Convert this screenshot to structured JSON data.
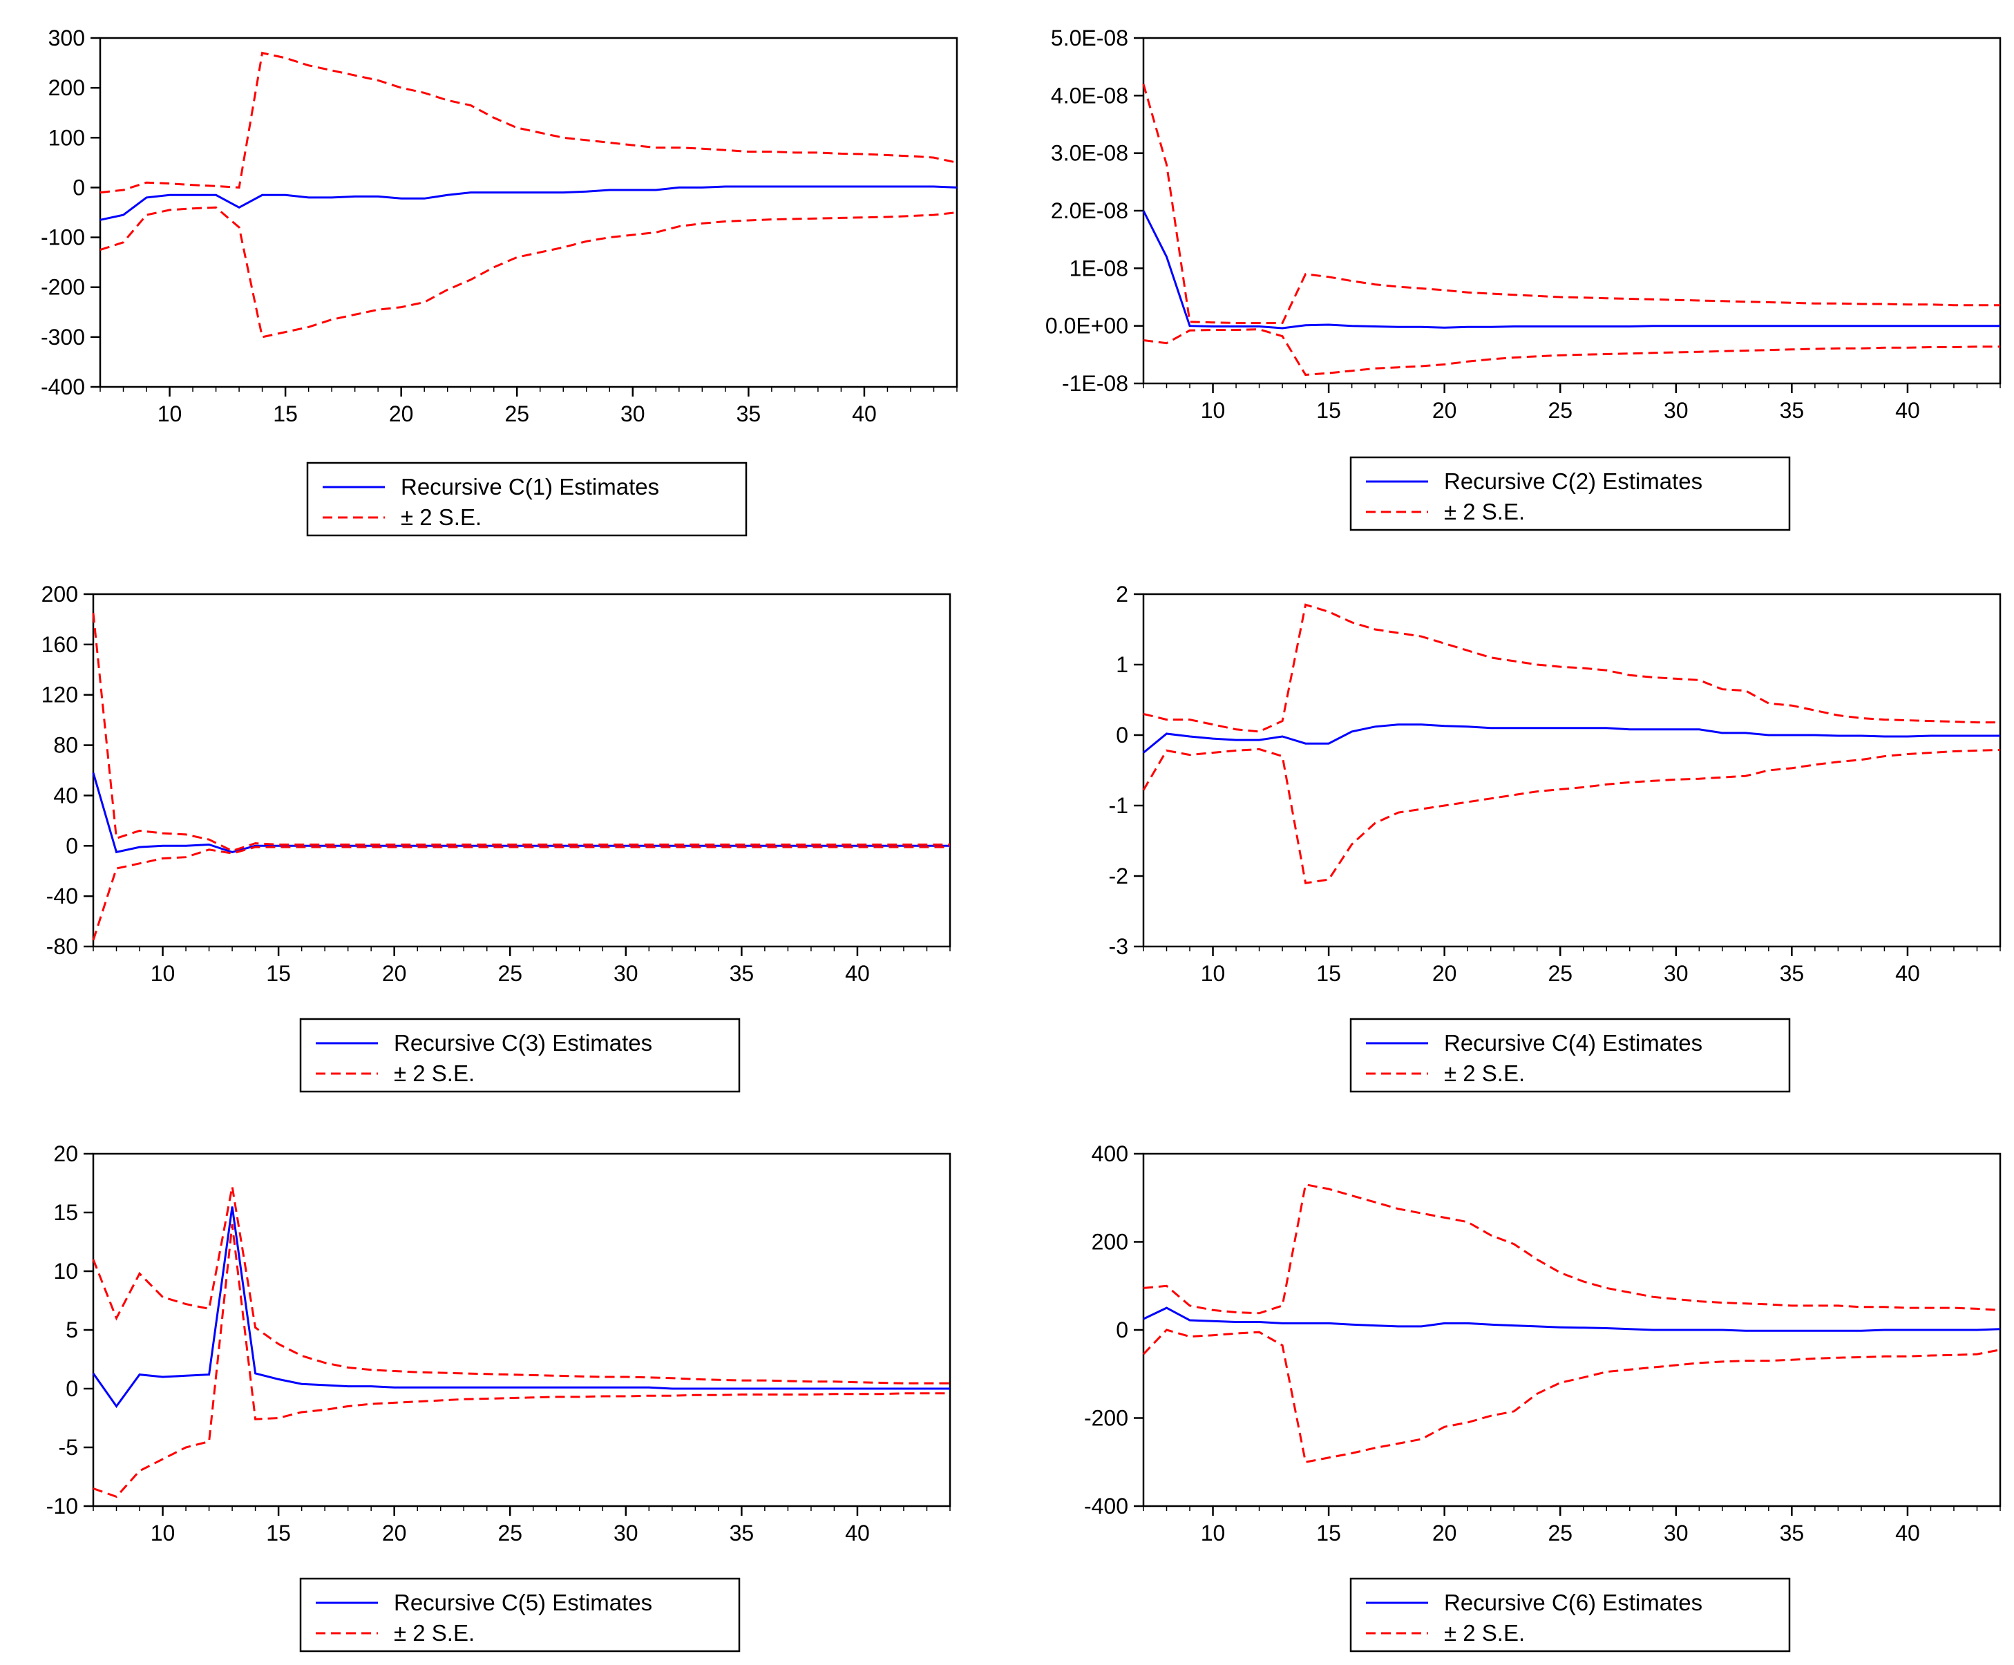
{
  "colors": {
    "estimate": "#0000ff",
    "band": "#ff0000",
    "axis": "#000000"
  },
  "legend_labels": {
    "band": "± 2 S.E."
  },
  "chart_data": [
    {
      "type": "line",
      "title": "Recursive C(1) Estimates",
      "xlim": [
        7,
        44
      ],
      "x_ticks": [
        10,
        15,
        20,
        25,
        30,
        35,
        40
      ],
      "ylim": [
        -400,
        300
      ],
      "y_ticks": [
        -400,
        -300,
        -200,
        -100,
        0,
        100,
        200,
        300
      ],
      "y_tick_labels": [
        "-400",
        "-300",
        "-200",
        "-100",
        "0",
        "100",
        "200",
        "300"
      ],
      "x": [
        7,
        8,
        9,
        10,
        11,
        12,
        13,
        14,
        15,
        16,
        17,
        18,
        19,
        20,
        21,
        22,
        23,
        24,
        25,
        26,
        27,
        28,
        29,
        30,
        31,
        32,
        33,
        34,
        35,
        36,
        37,
        38,
        39,
        40,
        41,
        42,
        43,
        44
      ],
      "series": [
        {
          "name": "Recursive C(1) Estimates",
          "values": [
            -65,
            -55,
            -20,
            -15,
            -15,
            -15,
            -40,
            -15,
            -15,
            -20,
            -20,
            -18,
            -18,
            -22,
            -22,
            -15,
            -10,
            -10,
            -10,
            -10,
            -10,
            -8,
            -5,
            -5,
            -5,
            0,
            0,
            2,
            2,
            2,
            2,
            2,
            2,
            2,
            2,
            2,
            2,
            0
          ]
        },
        {
          "name": "+2 S.E.",
          "values": [
            -10,
            -5,
            10,
            8,
            5,
            3,
            0,
            270,
            260,
            245,
            235,
            225,
            215,
            200,
            190,
            175,
            165,
            140,
            120,
            110,
            100,
            95,
            90,
            85,
            80,
            80,
            78,
            75,
            72,
            72,
            70,
            70,
            68,
            67,
            65,
            63,
            60,
            50
          ]
        },
        {
          "name": "-2 S.E.",
          "values": [
            -125,
            -110,
            -55,
            -45,
            -42,
            -40,
            -80,
            -300,
            -290,
            -280,
            -265,
            -255,
            -245,
            -240,
            -230,
            -205,
            -185,
            -160,
            -140,
            -130,
            -120,
            -108,
            -100,
            -95,
            -90,
            -78,
            -72,
            -68,
            -66,
            -64,
            -63,
            -62,
            -61,
            -60,
            -59,
            -57,
            -55,
            -50
          ]
        }
      ]
    },
    {
      "type": "line",
      "title": "Recursive C(2) Estimates",
      "xlim": [
        7,
        44
      ],
      "x_ticks": [
        10,
        15,
        20,
        25,
        30,
        35,
        40
      ],
      "ylim": [
        -1e-08,
        5e-08
      ],
      "y_ticks": [
        -1e-08,
        0,
        1e-08,
        2e-08,
        3e-08,
        4e-08,
        5e-08
      ],
      "y_tick_labels": [
        "-1E-08",
        "0.0E+00",
        "1E-08",
        "2.0E-08",
        "3.0E-08",
        "4.0E-08",
        "5.0E-08"
      ],
      "x": [
        7,
        8,
        9,
        10,
        11,
        12,
        13,
        14,
        15,
        16,
        17,
        18,
        19,
        20,
        21,
        22,
        23,
        24,
        25,
        26,
        27,
        28,
        29,
        30,
        31,
        32,
        33,
        34,
        35,
        36,
        37,
        38,
        39,
        40,
        41,
        42,
        43,
        44
      ],
      "series": [
        {
          "name": "Recursive C(2) Estimates",
          "values": [
            2e-08,
            1.2e-08,
            0.0,
            -1e-10,
            -1e-10,
            -1e-10,
            -4e-10,
            1e-10,
            2e-10,
            0.0,
            -1e-10,
            -2e-10,
            -2e-10,
            -3e-10,
            -2e-10,
            -2e-10,
            -1e-10,
            -1e-10,
            -1e-10,
            -1e-10,
            -1e-10,
            -1e-10,
            0,
            0,
            0,
            0,
            0,
            0,
            0,
            0,
            0,
            0,
            0,
            0,
            0,
            0,
            0,
            0
          ]
        },
        {
          "name": "+2 S.E.",
          "values": [
            4.2e-08,
            2.8e-08,
            7e-10,
            6e-10,
            5e-10,
            5e-10,
            5e-10,
            9e-09,
            8.5e-09,
            7.8e-09,
            7.2e-09,
            6.8e-09,
            6.5e-09,
            6.2e-09,
            5.8e-09,
            5.6e-09,
            5.4e-09,
            5.2e-09,
            5e-09,
            4.9e-09,
            4.8e-09,
            4.7e-09,
            4.6e-09,
            4.5e-09,
            4.4e-09,
            4.3e-09,
            4.2e-09,
            4.1e-09,
            4e-09,
            3.9e-09,
            3.9e-09,
            3.8e-09,
            3.8e-09,
            3.7e-09,
            3.7e-09,
            3.6e-09,
            3.6e-09,
            3.6e-09
          ]
        },
        {
          "name": "-2 S.E.",
          "values": [
            -2.5e-09,
            -3e-09,
            -8e-10,
            -7e-10,
            -7e-10,
            -6e-10,
            -1.8e-09,
            -8.5e-09,
            -8.2e-09,
            -7.8e-09,
            -7.4e-09,
            -7.2e-09,
            -7e-09,
            -6.7e-09,
            -6.2e-09,
            -5.8e-09,
            -5.5e-09,
            -5.3e-09,
            -5.1e-09,
            -5e-09,
            -4.9e-09,
            -4.8e-09,
            -4.7e-09,
            -4.6e-09,
            -4.5e-09,
            -4.4e-09,
            -4.3e-09,
            -4.2e-09,
            -4.1e-09,
            -4e-09,
            -3.9e-09,
            -3.9e-09,
            -3.8e-09,
            -3.8e-09,
            -3.7e-09,
            -3.7e-09,
            -3.6e-09,
            -3.6e-09
          ]
        }
      ]
    },
    {
      "type": "line",
      "title": "Recursive C(3) Estimates",
      "xlim": [
        7,
        44
      ],
      "x_ticks": [
        10,
        15,
        20,
        25,
        30,
        35,
        40
      ],
      "ylim": [
        -80,
        200
      ],
      "y_ticks": [
        -80,
        -40,
        0,
        40,
        80,
        120,
        160,
        200
      ],
      "y_tick_labels": [
        "-80",
        "-40",
        "0",
        "40",
        "80",
        "120",
        "160",
        "200"
      ],
      "x": [
        7,
        8,
        9,
        10,
        11,
        12,
        13,
        14,
        15,
        16,
        17,
        18,
        19,
        20,
        21,
        22,
        23,
        24,
        25,
        26,
        27,
        28,
        29,
        30,
        31,
        32,
        33,
        34,
        35,
        36,
        37,
        38,
        39,
        40,
        41,
        42,
        43,
        44
      ],
      "series": [
        {
          "name": "Recursive C(3) Estimates",
          "values": [
            58,
            -5,
            -1,
            0,
            0,
            1,
            -5,
            0,
            0,
            0,
            0,
            0,
            0,
            0,
            0,
            0,
            0,
            0,
            0,
            0,
            0,
            0,
            0,
            0,
            0,
            0,
            0,
            0,
            0,
            0,
            0,
            0,
            0,
            0,
            0,
            0,
            0,
            0
          ]
        },
        {
          "name": "+2 S.E.",
          "values": [
            185,
            6,
            12,
            10,
            9,
            5,
            -4,
            2,
            1,
            1,
            1,
            1,
            1,
            1,
            1,
            1,
            1,
            1,
            1,
            1,
            1,
            1,
            1,
            1,
            1,
            1,
            1,
            1,
            1,
            1,
            1,
            1,
            1,
            1,
            1,
            1,
            1,
            1
          ]
        },
        {
          "name": "-2 S.E.",
          "values": [
            -75,
            -18,
            -14,
            -10,
            -9,
            -3,
            -6,
            -1,
            -1,
            -1,
            -1,
            -1,
            -1,
            -1,
            -1,
            -1,
            -1,
            -1,
            -1,
            -1,
            -1,
            -1,
            -1,
            -1,
            -1,
            -1,
            -1,
            -1,
            -1,
            -1,
            -1,
            -1,
            -1,
            -1,
            -1,
            -1,
            -1,
            -1
          ]
        }
      ]
    },
    {
      "type": "line",
      "title": "Recursive C(4) Estimates",
      "xlim": [
        7,
        44
      ],
      "x_ticks": [
        10,
        15,
        20,
        25,
        30,
        35,
        40
      ],
      "ylim": [
        -3,
        2
      ],
      "y_ticks": [
        -3,
        -2,
        -1,
        0,
        1,
        2
      ],
      "y_tick_labels": [
        "-3",
        "-2",
        "-1",
        "0",
        "1",
        "2"
      ],
      "x": [
        7,
        8,
        9,
        10,
        11,
        12,
        13,
        14,
        15,
        16,
        17,
        18,
        19,
        20,
        21,
        22,
        23,
        24,
        25,
        26,
        27,
        28,
        29,
        30,
        31,
        32,
        33,
        34,
        35,
        36,
        37,
        38,
        39,
        40,
        41,
        42,
        43,
        44
      ],
      "series": [
        {
          "name": "Recursive C(4) Estimates",
          "values": [
            -0.25,
            0.02,
            -0.02,
            -0.05,
            -0.07,
            -0.07,
            -0.02,
            -0.12,
            -0.12,
            0.05,
            0.12,
            0.15,
            0.15,
            0.13,
            0.12,
            0.1,
            0.1,
            0.1,
            0.1,
            0.1,
            0.1,
            0.08,
            0.08,
            0.08,
            0.08,
            0.03,
            0.03,
            0.0,
            0.0,
            0.0,
            -0.01,
            -0.01,
            -0.02,
            -0.02,
            -0.01,
            -0.01,
            -0.01,
            -0.01
          ]
        },
        {
          "name": "+2 S.E.",
          "values": [
            0.3,
            0.22,
            0.22,
            0.15,
            0.08,
            0.05,
            0.2,
            1.85,
            1.75,
            1.6,
            1.5,
            1.45,
            1.4,
            1.3,
            1.2,
            1.1,
            1.05,
            1.0,
            0.97,
            0.95,
            0.92,
            0.85,
            0.82,
            0.8,
            0.78,
            0.65,
            0.63,
            0.45,
            0.42,
            0.35,
            0.28,
            0.24,
            0.22,
            0.21,
            0.2,
            0.19,
            0.18,
            0.18
          ]
        },
        {
          "name": "-2 S.E.",
          "values": [
            -0.78,
            -0.22,
            -0.28,
            -0.25,
            -0.22,
            -0.2,
            -0.3,
            -2.1,
            -2.05,
            -1.55,
            -1.25,
            -1.1,
            -1.05,
            -1.0,
            -0.95,
            -0.9,
            -0.85,
            -0.8,
            -0.77,
            -0.74,
            -0.7,
            -0.67,
            -0.65,
            -0.63,
            -0.62,
            -0.6,
            -0.58,
            -0.5,
            -0.47,
            -0.42,
            -0.38,
            -0.35,
            -0.3,
            -0.27,
            -0.25,
            -0.23,
            -0.22,
            -0.21
          ]
        }
      ]
    },
    {
      "type": "line",
      "title": "Recursive C(5) Estimates",
      "xlim": [
        7,
        44
      ],
      "x_ticks": [
        10,
        15,
        20,
        25,
        30,
        35,
        40
      ],
      "ylim": [
        -10,
        20
      ],
      "y_ticks": [
        -10,
        -5,
        0,
        5,
        10,
        15,
        20
      ],
      "y_tick_labels": [
        "-10",
        "-5",
        "0",
        "5",
        "10",
        "15",
        "20"
      ],
      "x": [
        7,
        8,
        9,
        10,
        11,
        12,
        13,
        14,
        15,
        16,
        17,
        18,
        19,
        20,
        21,
        22,
        23,
        24,
        25,
        26,
        27,
        28,
        29,
        30,
        31,
        32,
        33,
        34,
        35,
        36,
        37,
        38,
        39,
        40,
        41,
        42,
        43,
        44
      ],
      "series": [
        {
          "name": "Recursive C(5) Estimates",
          "values": [
            1.3,
            -1.5,
            1.2,
            1.0,
            1.1,
            1.2,
            15.5,
            1.3,
            0.8,
            0.4,
            0.3,
            0.2,
            0.2,
            0.1,
            0.1,
            0.1,
            0.1,
            0.1,
            0.1,
            0.1,
            0.1,
            0.1,
            0.1,
            0.1,
            0.1,
            0.0,
            0.0,
            0.0,
            0.0,
            0.0,
            0.0,
            0.0,
            0.0,
            0.0,
            0.0,
            0.0,
            0.0,
            0.0
          ]
        },
        {
          "name": "+2 S.E.",
          "values": [
            11,
            6,
            9.8,
            7.8,
            7.2,
            6.8,
            17.2,
            5.2,
            3.8,
            2.8,
            2.2,
            1.8,
            1.6,
            1.5,
            1.4,
            1.35,
            1.3,
            1.25,
            1.2,
            1.15,
            1.1,
            1.05,
            1.0,
            1.0,
            0.95,
            0.9,
            0.8,
            0.75,
            0.7,
            0.7,
            0.65,
            0.6,
            0.6,
            0.55,
            0.5,
            0.45,
            0.45,
            0.45
          ]
        },
        {
          "name": "-2 S.E.",
          "values": [
            -8.5,
            -9.2,
            -7,
            -6,
            -5,
            -4.5,
            14,
            -2.6,
            -2.5,
            -2.0,
            -1.8,
            -1.5,
            -1.3,
            -1.2,
            -1.1,
            -1.0,
            -0.9,
            -0.85,
            -0.8,
            -0.75,
            -0.7,
            -0.7,
            -0.65,
            -0.65,
            -0.6,
            -0.6,
            -0.55,
            -0.55,
            -0.5,
            -0.5,
            -0.5,
            -0.5,
            -0.45,
            -0.45,
            -0.45,
            -0.4,
            -0.4,
            -0.4
          ]
        }
      ]
    },
    {
      "type": "line",
      "title": "Recursive C(6) Estimates",
      "xlim": [
        7,
        44
      ],
      "x_ticks": [
        10,
        15,
        20,
        25,
        30,
        35,
        40
      ],
      "ylim": [
        -400,
        400
      ],
      "y_ticks": [
        -400,
        -200,
        0,
        200,
        400
      ],
      "y_tick_labels": [
        "-400",
        "-200",
        "0",
        "200",
        "400"
      ],
      "x": [
        7,
        8,
        9,
        10,
        11,
        12,
        13,
        14,
        15,
        16,
        17,
        18,
        19,
        20,
        21,
        22,
        23,
        24,
        25,
        26,
        27,
        28,
        29,
        30,
        31,
        32,
        33,
        34,
        35,
        36,
        37,
        38,
        39,
        40,
        41,
        42,
        43,
        44
      ],
      "series": [
        {
          "name": "Recursive C(6) Estimates",
          "values": [
            25,
            50,
            22,
            20,
            18,
            18,
            15,
            15,
            15,
            12,
            10,
            8,
            8,
            15,
            15,
            12,
            10,
            8,
            6,
            5,
            4,
            2,
            0,
            0,
            0,
            0,
            -2,
            -2,
            -2,
            -2,
            -2,
            -2,
            0,
            0,
            0,
            0,
            0,
            2
          ]
        },
        {
          "name": "+2 S.E.",
          "values": [
            95,
            100,
            55,
            45,
            40,
            38,
            55,
            330,
            320,
            305,
            290,
            275,
            265,
            255,
            245,
            215,
            195,
            160,
            130,
            110,
            95,
            85,
            75,
            70,
            65,
            62,
            60,
            58,
            55,
            55,
            55,
            52,
            52,
            50,
            50,
            50,
            48,
            45
          ]
        },
        {
          "name": "-2 S.E.",
          "values": [
            -55,
            0,
            -15,
            -12,
            -8,
            -5,
            -35,
            -300,
            -290,
            -280,
            -268,
            -258,
            -248,
            -220,
            -210,
            -195,
            -185,
            -145,
            -120,
            -108,
            -95,
            -90,
            -85,
            -80,
            -75,
            -72,
            -70,
            -70,
            -68,
            -65,
            -63,
            -62,
            -60,
            -60,
            -58,
            -57,
            -55,
            -45
          ]
        }
      ]
    }
  ]
}
